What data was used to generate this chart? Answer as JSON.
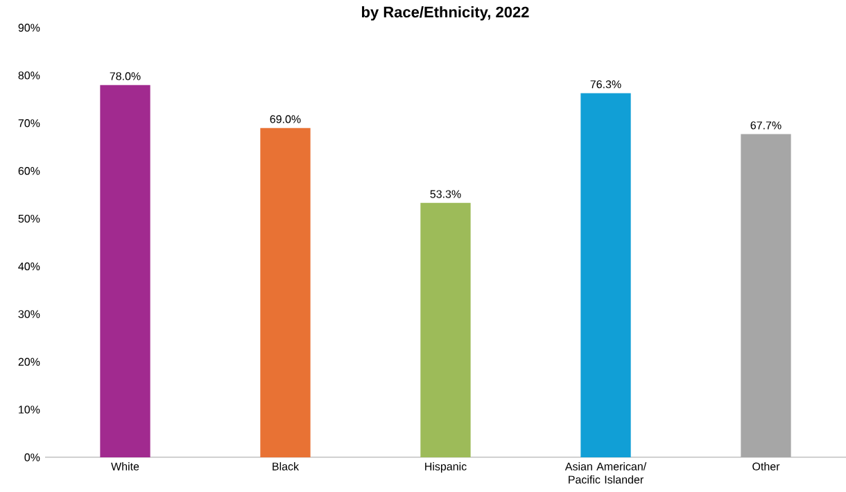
{
  "chart_data": {
    "type": "bar",
    "title": "by Race/Ethnicity, 2022",
    "categories": [
      "White",
      "Black",
      "Hispanic",
      "Asian American/ Pacific Islander",
      "Other"
    ],
    "values": [
      78.0,
      69.0,
      53.3,
      76.3,
      67.7
    ],
    "colors": [
      "#a12a8f",
      "#e87234",
      "#9dbb59",
      "#119fd6",
      "#a6a6a6"
    ],
    "value_labels": [
      "78.0%",
      "69.0%",
      "53.3%",
      "76.3%",
      "67.7%"
    ],
    "ylim": [
      0,
      90
    ],
    "yticks": [
      {
        "value": 0,
        "label": "0%"
      },
      {
        "value": 10,
        "label": "10%"
      },
      {
        "value": 20,
        "label": "20%"
      },
      {
        "value": 30,
        "label": "30%"
      },
      {
        "value": 40,
        "label": "40%"
      },
      {
        "value": 50,
        "label": "50%"
      },
      {
        "value": 60,
        "label": "60%"
      },
      {
        "value": 70,
        "label": "70%"
      },
      {
        "value": 80,
        "label": "80%"
      },
      {
        "value": 90,
        "label": "90%"
      }
    ],
    "grid": false
  }
}
